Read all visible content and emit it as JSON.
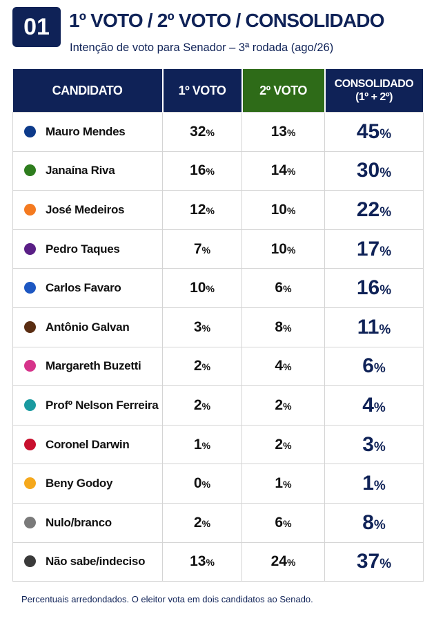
{
  "header": {
    "badge": "01",
    "title": "1º VOTO / 2º VOTO / CONSOLIDADO",
    "subtitle": "Intenção de voto para Senador – 3ª rodada (ago/26)"
  },
  "table": {
    "columns": [
      "CANDIDATO",
      "1º VOTO",
      "2º VOTO",
      "CONSOLIDADO",
      "(1º + 2º)"
    ],
    "unit": "%",
    "rows": [
      {
        "name": "Mauro Mendes",
        "color": "#0d3a8a",
        "first": 32,
        "second": 13,
        "total": 45
      },
      {
        "name": "Janaína Riva",
        "color": "#2e7d1e",
        "first": 16,
        "second": 14,
        "total": 30
      },
      {
        "name": "José Medeiros",
        "color": "#f47a20",
        "first": 12,
        "second": 10,
        "total": 22
      },
      {
        "name": "Pedro Taques",
        "color": "#5a1f86",
        "first": 7,
        "second": 10,
        "total": 17
      },
      {
        "name": "Carlos Favaro",
        "color": "#1d57c2",
        "first": 10,
        "second": 6,
        "total": 16
      },
      {
        "name": "Antônio Galvan",
        "color": "#5a2d12",
        "first": 3,
        "second": 8,
        "total": 11
      },
      {
        "name": "Margareth Buzetti",
        "color": "#d6338a",
        "first": 2,
        "second": 4,
        "total": 6
      },
      {
        "name": "Profº Nelson Ferreira",
        "color": "#1a9aa0",
        "first": 2,
        "second": 2,
        "total": 4
      },
      {
        "name": "Coronel Darwin",
        "color": "#c8102e",
        "first": 1,
        "second": 2,
        "total": 3
      },
      {
        "name": "Beny Godoy",
        "color": "#f5a81c",
        "first": 0,
        "second": 1,
        "total": 1
      },
      {
        "name": "Nulo/branco",
        "color": "#7a7a7a",
        "first": 2,
        "second": 6,
        "total": 8
      },
      {
        "name": "Não sabe/indeciso",
        "color": "#3a3a3a",
        "first": 13,
        "second": 24,
        "total": 37
      }
    ]
  },
  "footer": {
    "note": "Percentuais arredondados. O eleitor vota em dois candidatos ao Senado."
  }
}
